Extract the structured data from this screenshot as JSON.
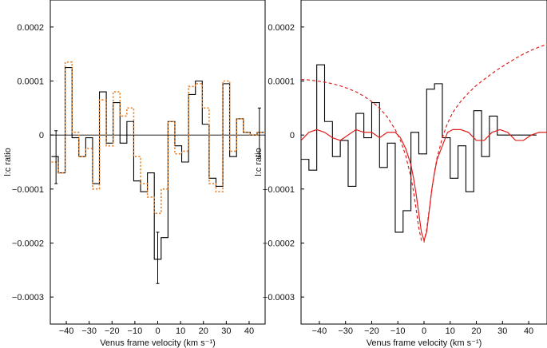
{
  "chart_data": [
    {
      "type": "line",
      "xlabel": "Venus frame velocity (km s⁻¹)",
      "ylabel": "l:c ratio",
      "xlim": [
        -47,
        47
      ],
      "ylim": [
        -0.00035,
        0.00025
      ],
      "xticks": [
        -40,
        -30,
        -20,
        -10,
        0,
        10,
        20,
        30,
        40
      ],
      "xtick_labels": [
        "−40",
        "−30",
        "−20",
        "−10",
        "0",
        "10",
        "20",
        "30",
        "40"
      ],
      "yticks": [
        0.0002,
        0.0001,
        0,
        -0.0001,
        -0.0002,
        -0.0003
      ],
      "ytick_labels": [
        "0.0002",
        "0.0001",
        "0",
        "−0.0001",
        "−0.0002",
        "−0.0003"
      ],
      "zero_line": true,
      "series": [
        {
          "style": "step",
          "color": "#000000",
          "dash": "solid",
          "bin_edges": [
            -46.5,
            -43.5,
            -40.5,
            -37.5,
            -34.5,
            -31.5,
            -28.5,
            -25.5,
            -22.5,
            -19.5,
            -16.5,
            -13.5,
            -10.5,
            -7.5,
            -4.5,
            -1.5,
            1.5,
            4.5,
            7.5,
            10.5,
            13.5,
            16.5,
            19.5,
            22.5,
            25.5,
            28.5,
            31.5,
            34.5,
            37.5,
            40.5,
            43.5,
            46.5
          ],
          "values": [
            -4e-05,
            -7e-05,
            0.000125,
            -5e-06,
            -4e-05,
            -5e-06,
            -9e-05,
            8e-05,
            -1.5e-05,
            6e-05,
            -1.5e-05,
            2.5e-05,
            -8.5e-05,
            -0.000105,
            -7e-05,
            -0.00023,
            -0.00019,
            2.5e-05,
            -2e-05,
            -5e-05,
            7.5e-05,
            0.0001,
            2e-05,
            -8e-05,
            -9.5e-05,
            9.5e-05,
            -4e-05,
            3e-05,
            5e-06,
            0.0,
            5e-06
          ]
        },
        {
          "style": "step",
          "color": "#e8822a",
          "dash": "dotted",
          "bin_edges": [
            -46.5,
            -43.5,
            -40.5,
            -37.5,
            -34.5,
            -31.5,
            -28.5,
            -25.5,
            -22.5,
            -19.5,
            -16.5,
            -13.5,
            -10.5,
            -7.5,
            -4.5,
            -1.5,
            1.5,
            4.5,
            7.5,
            10.5,
            13.5,
            16.5,
            19.5,
            22.5,
            25.5,
            28.5,
            31.5,
            34.5,
            37.5,
            40.5,
            43.5,
            46.5
          ],
          "values": [
            -5e-05,
            -7e-05,
            0.000135,
            5e-06,
            -4e-05,
            -2.5e-05,
            -0.0001,
            6.5e-05,
            -2e-05,
            8e-05,
            3.5e-05,
            5e-05,
            -4e-05,
            -9e-05,
            -0.000115,
            -0.000145,
            -0.0001,
            2.5e-05,
            -3.5e-05,
            -3e-05,
            9e-05,
            9.5e-05,
            5e-05,
            -9e-05,
            -0.000105,
            0.0001,
            -3e-05,
            3e-05,
            5e-06,
            0.0,
            5e-06
          ]
        }
      ],
      "error_bars": [
        {
          "x": -44.5,
          "y": -4e-05,
          "low": -9e-05,
          "high": 8e-06
        },
        {
          "x": 0,
          "y": -0.00023,
          "low": -0.000275,
          "high": -0.00018
        },
        {
          "x": 44.5,
          "y": 5e-06,
          "low": -4e-05,
          "high": 5e-05
        }
      ]
    },
    {
      "type": "line",
      "xlabel": "Venus frame velocity (km s⁻¹)",
      "ylabel": "l:c ratio",
      "xlim": [
        -47,
        47
      ],
      "ylim": [
        -0.00035,
        0.00025
      ],
      "xticks": [
        -40,
        -30,
        -20,
        -10,
        0,
        10,
        20,
        30,
        40
      ],
      "xtick_labels": [
        "−40",
        "−30",
        "−20",
        "−10",
        "0",
        "10",
        "20",
        "30",
        "40"
      ],
      "yticks": [
        0.0002,
        0.0001,
        0,
        -0.0001,
        -0.0002,
        -0.0003
      ],
      "ytick_labels": [
        "0.0002",
        "0.0001",
        "0",
        "−0.0001",
        "−0.0002",
        "−0.0003"
      ],
      "zero_line": false,
      "series": [
        {
          "style": "step",
          "color": "#000000",
          "dash": "solid",
          "bin_edges": [
            -47,
            -44,
            -41,
            -38,
            -35,
            -32,
            -29,
            -26,
            -23,
            -20,
            -17,
            -14,
            -11,
            -8,
            -5,
            -2,
            1,
            4,
            7,
            10,
            13,
            16,
            19,
            22,
            25,
            28,
            31,
            34,
            37,
            40,
            43
          ],
          "values": [
            -4.5e-05,
            -6.5e-05,
            0.00013,
            2.5e-05,
            -4e-05,
            -1e-05,
            -9.5e-05,
            4e-05,
            -5e-06,
            6e-05,
            -6e-05,
            -1.5e-05,
            -0.00018,
            -0.00014,
            5e-06,
            -3.5e-05,
            8.5e-05,
            9.5e-05,
            -5e-06,
            -8e-05,
            -2e-05,
            -0.000105,
            4.5e-05,
            -4e-05,
            3.5e-05,
            0.0,
            0.0,
            0.0,
            0.0,
            0.0
          ]
        },
        {
          "style": "curve",
          "color": "#e01f1f",
          "dash": "solid",
          "x": [
            -47,
            -44,
            -41,
            -38,
            -35,
            -32,
            -29,
            -26,
            -23,
            -20,
            -17,
            -14,
            -11,
            -9,
            -7,
            -5,
            -4,
            -3,
            -2,
            -1,
            0,
            1,
            2,
            3,
            4,
            5,
            7,
            9,
            11,
            14,
            17,
            20,
            23,
            26,
            29,
            32,
            35,
            38,
            41,
            44,
            47
          ],
          "y": [
            -1e-05,
            5e-06,
            1e-05,
            5e-06,
            -5e-06,
            -1e-05,
            0.0,
            1e-05,
            5e-06,
            5e-06,
            -5e-06,
            5e-06,
            5e-06,
            -5e-06,
            -2.5e-05,
            -5.5e-05,
            -8e-05,
            -0.00011,
            -0.000145,
            -0.00018,
            -0.000195,
            -0.00018,
            -0.00014,
            -0.0001,
            -7e-05,
            -4.5e-05,
            -2e-05,
            5e-06,
            1e-05,
            1e-05,
            5e-06,
            -1e-05,
            -1e-05,
            5e-06,
            1e-05,
            5e-06,
            -1e-05,
            -1e-05,
            0.0,
            5e-06,
            5e-06
          ]
        },
        {
          "style": "curve",
          "color": "#e01f1f",
          "dash": "dashed",
          "x": [
            -47,
            -44,
            -41,
            -38,
            -35,
            -32,
            -29,
            -26,
            -23,
            -20,
            -17,
            -14,
            -11,
            -9,
            -7,
            -5,
            -4,
            -3,
            -2,
            -1,
            0,
            1,
            2,
            3,
            4,
            5,
            7,
            9,
            11,
            14,
            17,
            20,
            23,
            26,
            29,
            32,
            35,
            38,
            41,
            44,
            47
          ],
          "y": [
            0.000103,
            0.000102,
            0.0001,
            9.8e-05,
            9.5e-05,
            9.1e-05,
            8.6e-05,
            8e-05,
            7.2e-05,
            6.2e-05,
            5e-05,
            3.3e-05,
            1e-05,
            -1e-05,
            -3.8e-05,
            -7.8e-05,
            -0.000105,
            -0.000138,
            -0.000172,
            -0.000195,
            -0.000198,
            -0.000175,
            -0.000138,
            -0.0001,
            -6.8e-05,
            -4.2e-05,
            -5e-06,
            2.2e-05,
            4.2e-05,
            6.2e-05,
            7.8e-05,
            9.2e-05,
            0.000103,
            0.000114,
            0.000124,
            0.000133,
            0.000142,
            0.00015,
            0.000157,
            0.000163,
            0.000168
          ]
        }
      ]
    }
  ]
}
